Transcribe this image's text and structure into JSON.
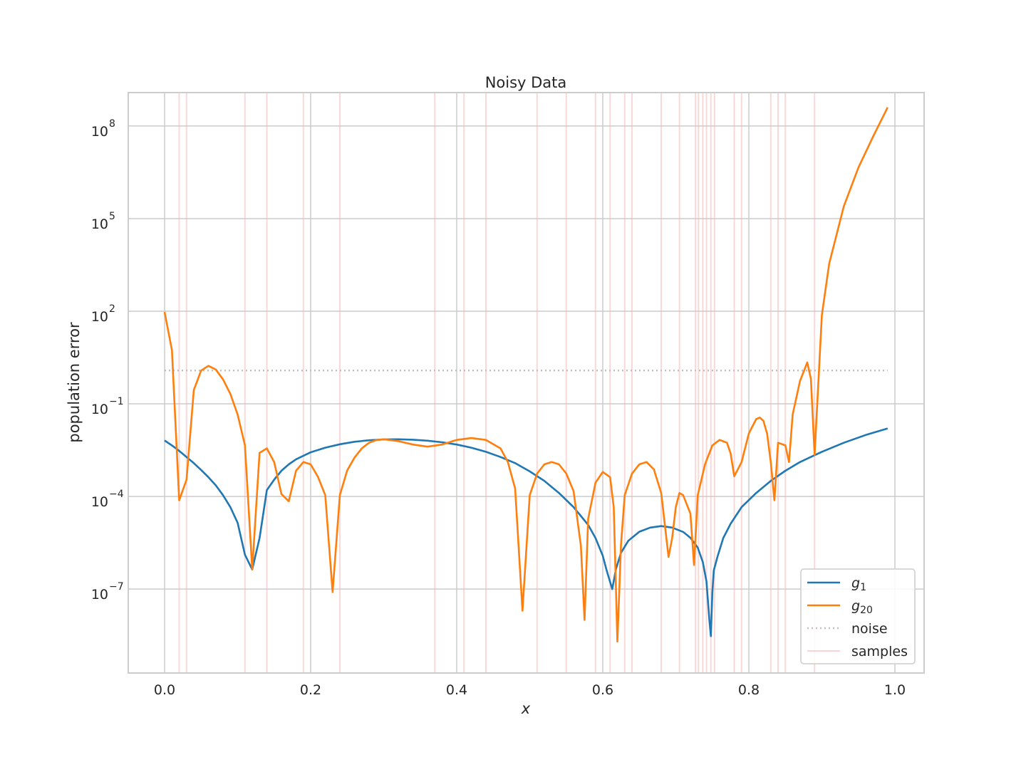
{
  "chart_data": {
    "type": "line",
    "title": "Noisy Data",
    "xlabel": "x",
    "ylabel": "population error",
    "yscale": "log",
    "xlim": [
      -0.05,
      1.04
    ],
    "ylim_log10": [
      -9.5,
      9.3
    ],
    "xticks": [
      {
        "value": 0.0,
        "label": "0.0"
      },
      {
        "value": 0.2,
        "label": "0.2"
      },
      {
        "value": 0.4,
        "label": "0.4"
      },
      {
        "value": 0.6,
        "label": "0.6"
      },
      {
        "value": 0.8,
        "label": "0.8"
      },
      {
        "value": 1.0,
        "label": "1.0"
      }
    ],
    "yticks": [
      {
        "exp": 8,
        "base": "10",
        "sup": "8"
      },
      {
        "exp": 5,
        "base": "10",
        "sup": "5"
      },
      {
        "exp": 2,
        "base": "10",
        "sup": "2"
      },
      {
        "exp": -1,
        "base": "10",
        "sup": "−1"
      },
      {
        "exp": -4,
        "base": "10",
        "sup": "−4"
      },
      {
        "exp": -7,
        "base": "10",
        "sup": "−7"
      }
    ],
    "grid": true,
    "legend_position": "lower-right",
    "colors": {
      "g1": "#1f77b4",
      "g20": "#ff7f0e",
      "noise": "#c0c0c0",
      "samples": "#f4b8b8"
    },
    "noise_level": 1.2,
    "samples_x": [
      0.02,
      0.03,
      0.11,
      0.14,
      0.19,
      0.24,
      0.37,
      0.41,
      0.44,
      0.51,
      0.55,
      0.59,
      0.61,
      0.63,
      0.64,
      0.68,
      0.705,
      0.727,
      0.731,
      0.737,
      0.742,
      0.748,
      0.753,
      0.78,
      0.79,
      0.83,
      0.84,
      0.85,
      0.89
    ],
    "series": [
      {
        "name": "g",
        "subscript": "1",
        "key": "g1",
        "points": [
          [
            0.0,
            0.0065
          ],
          [
            0.01,
            0.0045
          ],
          [
            0.02,
            0.003
          ],
          [
            0.03,
            0.0019
          ],
          [
            0.04,
            0.0012
          ],
          [
            0.05,
            0.00072
          ],
          [
            0.06,
            0.00042
          ],
          [
            0.07,
            0.00023
          ],
          [
            0.08,
            0.00011
          ],
          [
            0.09,
            4.5e-05
          ],
          [
            0.1,
            1.4e-05
          ],
          [
            0.11,
            1.3e-06
          ],
          [
            0.12,
            4.3e-07
          ],
          [
            0.13,
            4.5e-06
          ],
          [
            0.14,
            0.00016
          ],
          [
            0.15,
            0.00035
          ],
          [
            0.16,
            0.00068
          ],
          [
            0.17,
            0.0011
          ],
          [
            0.18,
            0.0016
          ],
          [
            0.2,
            0.0027
          ],
          [
            0.22,
            0.0038
          ],
          [
            0.24,
            0.0049
          ],
          [
            0.26,
            0.0059
          ],
          [
            0.28,
            0.0066
          ],
          [
            0.3,
            0.007
          ],
          [
            0.32,
            0.0071
          ],
          [
            0.34,
            0.0069
          ],
          [
            0.36,
            0.0064
          ],
          [
            0.38,
            0.0057
          ],
          [
            0.4,
            0.0048
          ],
          [
            0.42,
            0.0038
          ],
          [
            0.44,
            0.0028
          ],
          [
            0.46,
            0.0019
          ],
          [
            0.48,
            0.0012
          ],
          [
            0.5,
            0.00065
          ],
          [
            0.52,
            0.00032
          ],
          [
            0.54,
            0.00013
          ],
          [
            0.56,
            4.5e-05
          ],
          [
            0.58,
            1.2e-05
          ],
          [
            0.59,
            4.5e-06
          ],
          [
            0.6,
            1.2e-06
          ],
          [
            0.605,
            4.3e-07
          ],
          [
            0.613,
            1e-07
          ],
          [
            0.618,
            4.5e-07
          ],
          [
            0.625,
            1.5e-06
          ],
          [
            0.635,
            3.7e-06
          ],
          [
            0.65,
            7.2e-06
          ],
          [
            0.665,
            9.8e-06
          ],
          [
            0.68,
            1.1e-05
          ],
          [
            0.695,
            9.8e-06
          ],
          [
            0.71,
            7.1e-06
          ],
          [
            0.72,
            4.6e-06
          ],
          [
            0.73,
            2.2e-06
          ],
          [
            0.737,
            7.5e-07
          ],
          [
            0.742,
            1.8e-07
          ],
          [
            0.746,
            1e-08
          ],
          [
            0.748,
            3e-09
          ],
          [
            0.75,
            8e-08
          ],
          [
            0.752,
            4e-07
          ],
          [
            0.757,
            1.1e-06
          ],
          [
            0.765,
            4.5e-06
          ],
          [
            0.775,
            1.3e-05
          ],
          [
            0.79,
            4.5e-05
          ],
          [
            0.81,
            0.00013
          ],
          [
            0.83,
            0.00032
          ],
          [
            0.85,
            0.00068
          ],
          [
            0.87,
            0.0013
          ],
          [
            0.9,
            0.0028
          ],
          [
            0.93,
            0.0055
          ],
          [
            0.96,
            0.0098
          ],
          [
            0.99,
            0.016
          ]
        ]
      },
      {
        "name": "g",
        "subscript": "20",
        "key": "g20",
        "points": [
          [
            0.0,
            95
          ],
          [
            0.01,
            5.5
          ],
          [
            0.02,
            7.5e-05
          ],
          [
            0.03,
            0.00035
          ],
          [
            0.04,
            0.28
          ],
          [
            0.05,
            1.2
          ],
          [
            0.06,
            1.7
          ],
          [
            0.07,
            1.3
          ],
          [
            0.08,
            0.62
          ],
          [
            0.09,
            0.21
          ],
          [
            0.1,
            0.045
          ],
          [
            0.11,
            0.0045
          ],
          [
            0.12,
            4.3e-07
          ],
          [
            0.13,
            0.0026
          ],
          [
            0.14,
            0.0036
          ],
          [
            0.15,
            0.0013
          ],
          [
            0.16,
            0.00012
          ],
          [
            0.17,
            7e-05
          ],
          [
            0.18,
            0.00068
          ],
          [
            0.19,
            0.0013
          ],
          [
            0.2,
            0.0011
          ],
          [
            0.21,
            0.00043
          ],
          [
            0.22,
            0.00011
          ],
          [
            0.23,
            8e-08
          ],
          [
            0.24,
            0.00011
          ],
          [
            0.25,
            0.0007
          ],
          [
            0.26,
            0.0018
          ],
          [
            0.27,
            0.0036
          ],
          [
            0.28,
            0.0055
          ],
          [
            0.29,
            0.0067
          ],
          [
            0.3,
            0.0071
          ],
          [
            0.32,
            0.0062
          ],
          [
            0.34,
            0.0048
          ],
          [
            0.36,
            0.0041
          ],
          [
            0.38,
            0.0048
          ],
          [
            0.4,
            0.0068
          ],
          [
            0.42,
            0.0078
          ],
          [
            0.44,
            0.0068
          ],
          [
            0.46,
            0.0036
          ],
          [
            0.47,
            0.0013
          ],
          [
            0.48,
            0.00018
          ],
          [
            0.49,
            2e-08
          ],
          [
            0.5,
            0.00011
          ],
          [
            0.51,
            0.00055
          ],
          [
            0.52,
            0.0011
          ],
          [
            0.53,
            0.0013
          ],
          [
            0.54,
            0.0011
          ],
          [
            0.55,
            0.00055
          ],
          [
            0.56,
            0.00015
          ],
          [
            0.57,
            2.5e-06
          ],
          [
            0.575,
            1e-08
          ],
          [
            0.58,
            1.9e-05
          ],
          [
            0.59,
            0.00028
          ],
          [
            0.6,
            0.00062
          ],
          [
            0.61,
            0.00042
          ],
          [
            0.615,
            4.5e-05
          ],
          [
            0.62,
            2e-09
          ],
          [
            0.625,
            2.8e-06
          ],
          [
            0.63,
            0.00011
          ],
          [
            0.64,
            0.00055
          ],
          [
            0.65,
            0.0011
          ],
          [
            0.66,
            0.0013
          ],
          [
            0.67,
            0.00075
          ],
          [
            0.68,
            0.00013
          ],
          [
            0.69,
            1.1e-06
          ],
          [
            0.695,
            4.5e-06
          ],
          [
            0.7,
            4.5e-05
          ],
          [
            0.705,
            0.00013
          ],
          [
            0.71,
            0.00011
          ],
          [
            0.72,
            2.8e-05
          ],
          [
            0.725,
            6e-07
          ],
          [
            0.73,
            0.00011
          ],
          [
            0.74,
            0.0011
          ],
          [
            0.75,
            0.0045
          ],
          [
            0.76,
            0.0068
          ],
          [
            0.77,
            0.0055
          ],
          [
            0.775,
            0.0025
          ],
          [
            0.78,
            0.00045
          ],
          [
            0.79,
            0.0013
          ],
          [
            0.8,
            0.011
          ],
          [
            0.81,
            0.032
          ],
          [
            0.815,
            0.036
          ],
          [
            0.82,
            0.028
          ],
          [
            0.825,
            0.011
          ],
          [
            0.83,
            0.0013
          ],
          [
            0.835,
            7.5e-05
          ],
          [
            0.84,
            0.0055
          ],
          [
            0.85,
            0.0045
          ],
          [
            0.855,
            0.0013
          ],
          [
            0.86,
            0.045
          ],
          [
            0.87,
            0.55
          ],
          [
            0.88,
            2.2
          ],
          [
            0.885,
            0.65
          ],
          [
            0.89,
            0.0022
          ],
          [
            0.9,
            75
          ],
          [
            0.91,
            3500
          ],
          [
            0.93,
            250000
          ],
          [
            0.95,
            4500000
          ],
          [
            0.97,
            45000000
          ],
          [
            0.99,
            400000000
          ]
        ]
      }
    ],
    "legend": [
      {
        "key": "g1",
        "label": "g",
        "sub": "1",
        "style": "solid"
      },
      {
        "key": "g20",
        "label": "g",
        "sub": "20",
        "style": "solid"
      },
      {
        "key": "noise",
        "label": "noise",
        "style": "dotted"
      },
      {
        "key": "samples",
        "label": "samples",
        "style": "solid-light"
      }
    ]
  }
}
